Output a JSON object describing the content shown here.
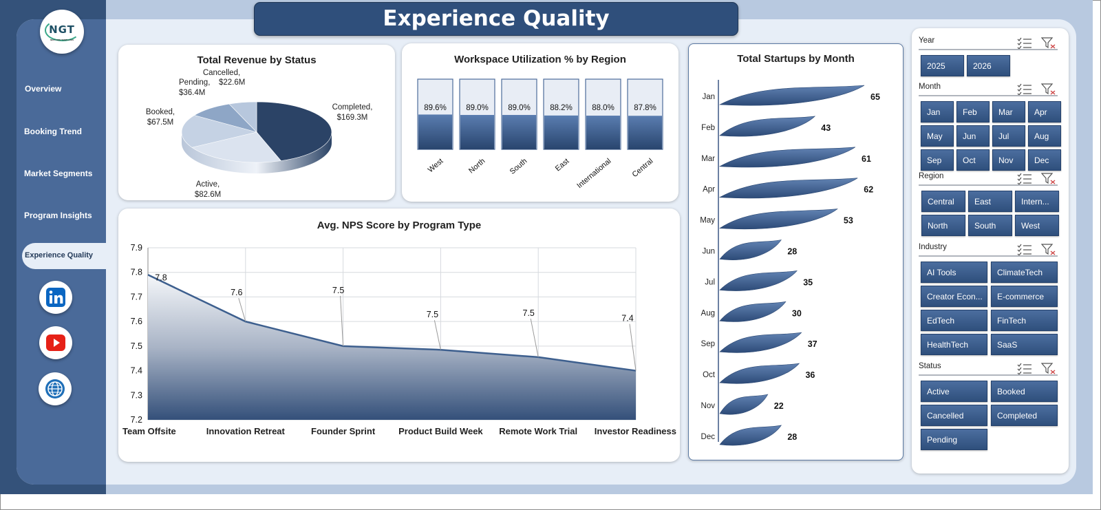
{
  "title": "Experience Quality",
  "logo": {
    "text": "NGT",
    "subtext": "NEXT GEN TEMPLATES"
  },
  "nav": [
    "Overview",
    "Booking Trend",
    "Market Segments",
    "Program Insights",
    "Experience Quality"
  ],
  "social_icons": [
    "linkedin-icon",
    "youtube-icon",
    "globe-icon"
  ],
  "colors": {
    "accent": "#2f4f7b",
    "sidebar": "#4a6a99",
    "series": "#3d5f8e"
  },
  "revenue_chart": {
    "title": "Total Revenue by Status",
    "slices": [
      {
        "label": "Completed,",
        "value": "$169.3M",
        "amount": 169.3
      },
      {
        "label": "Active,",
        "value": "$82.6M",
        "amount": 82.6
      },
      {
        "label": "Booked,",
        "value": "$67.5M",
        "amount": 67.5
      },
      {
        "label": "Pending,",
        "value": "$36.4M",
        "amount": 36.4
      },
      {
        "label": "Cancelled,",
        "value": "$22.6M",
        "amount": 22.6
      }
    ]
  },
  "utilization_chart": {
    "title": "Workspace Utilization % by Region",
    "bars": [
      {
        "label": "West",
        "value_text": "89.6%",
        "value": 89.6
      },
      {
        "label": "North",
        "value_text": "89.0%",
        "value": 89.0
      },
      {
        "label": "South",
        "value_text": "89.0%",
        "value": 89.0
      },
      {
        "label": "East",
        "value_text": "88.2%",
        "value": 88.2
      },
      {
        "label": "International",
        "value_text": "88.0%",
        "value": 88.0
      },
      {
        "label": "Central",
        "value_text": "87.8%",
        "value": 87.8
      }
    ]
  },
  "nps_chart": {
    "title": "Avg. NPS Score by Program Type",
    "y_ticks": [
      "7.9",
      "7.8",
      "7.7",
      "7.6",
      "7.5",
      "7.4",
      "7.3",
      "7.2"
    ],
    "ylim": [
      7.2,
      7.9
    ],
    "points": [
      {
        "label": "Team Offsite",
        "value": 7.79,
        "label_text": "7.8"
      },
      {
        "label": "Innovation Retreat",
        "value": 7.6,
        "label_text": "7.6"
      },
      {
        "label": "Founder Sprint",
        "value": 7.5,
        "label_text": "7.5"
      },
      {
        "label": "Product Build Week",
        "value": 7.485,
        "label_text": "7.5"
      },
      {
        "label": "Remote Work Trial",
        "value": 7.455,
        "label_text": "7.5"
      },
      {
        "label": "Investor Readiness",
        "value": 7.4,
        "label_text": "7.4"
      }
    ]
  },
  "startups_chart": {
    "title": "Total Startups by Month",
    "months": [
      {
        "label": "Jan",
        "value": 65
      },
      {
        "label": "Feb",
        "value": 43
      },
      {
        "label": "Mar",
        "value": 61
      },
      {
        "label": "Apr",
        "value": 62
      },
      {
        "label": "May",
        "value": 53
      },
      {
        "label": "Jun",
        "value": 28
      },
      {
        "label": "Jul",
        "value": 35
      },
      {
        "label": "Aug",
        "value": 30
      },
      {
        "label": "Sep",
        "value": 37
      },
      {
        "label": "Oct",
        "value": 36
      },
      {
        "label": "Nov",
        "value": 22
      },
      {
        "label": "Dec",
        "value": 28
      }
    ]
  },
  "chart_data": [
    {
      "type": "pie",
      "title": "Total Revenue by Status",
      "categories": [
        "Completed",
        "Active",
        "Booked",
        "Pending",
        "Cancelled"
      ],
      "values": [
        169.3,
        82.6,
        67.5,
        36.4,
        22.6
      ]
    },
    {
      "type": "bar",
      "title": "Workspace Utilization % by Region",
      "categories": [
        "West",
        "North",
        "South",
        "East",
        "International",
        "Central"
      ],
      "values": [
        89.6,
        89.0,
        89.0,
        88.2,
        88.0,
        87.8
      ]
    },
    {
      "type": "area",
      "title": "Avg. NPS Score by Program Type",
      "categories": [
        "Team Offsite",
        "Innovation Retreat",
        "Founder Sprint",
        "Product Build Week",
        "Remote Work Trial",
        "Investor Readiness"
      ],
      "values": [
        7.8,
        7.6,
        7.5,
        7.5,
        7.5,
        7.4
      ],
      "ylim": [
        7.2,
        7.9
      ],
      "grid": true
    },
    {
      "type": "bar",
      "title": "Total Startups by Month",
      "categories": [
        "Jan",
        "Feb",
        "Mar",
        "Apr",
        "May",
        "Jun",
        "Jul",
        "Aug",
        "Sep",
        "Oct",
        "Nov",
        "Dec"
      ],
      "values": [
        65,
        43,
        61,
        62,
        53,
        28,
        35,
        30,
        37,
        36,
        22,
        28
      ]
    }
  ],
  "slicers": [
    {
      "title": "Year",
      "items": [
        "2025",
        "2026"
      ]
    },
    {
      "title": "Month",
      "items": [
        "Jan",
        "Feb",
        "Mar",
        "Apr",
        "May",
        "Jun",
        "Jul",
        "Aug",
        "Sep",
        "Oct",
        "Nov",
        "Dec"
      ]
    },
    {
      "title": "Region",
      "items": [
        "Central",
        "East",
        "Intern...",
        "North",
        "South",
        "West"
      ]
    },
    {
      "title": "Industry",
      "items": [
        "AI Tools",
        "ClimateTech",
        "Creator Econ...",
        "E-commerce",
        "EdTech",
        "FinTech",
        "HealthTech",
        "SaaS"
      ]
    },
    {
      "title": "Status",
      "items": [
        "Active",
        "Booked",
        "Cancelled",
        "Completed",
        "Pending"
      ]
    }
  ]
}
